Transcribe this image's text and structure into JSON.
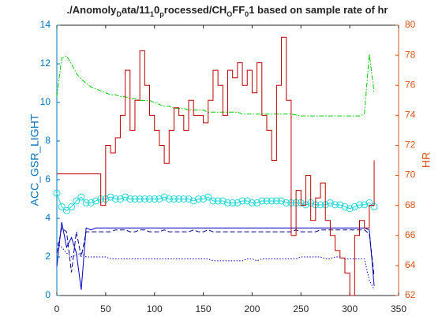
{
  "chart_data": {
    "type": "line",
    "title": [
      "./Anomoly",
      "D",
      "ata/11",
      "1",
      "0",
      "p",
      "rocessed/CH",
      "O",
      "FF",
      "0",
      "1 based on sample rate of hr"
    ],
    "ylabel": "ACC_GSR_LIGHT",
    "y2label": "HR",
    "xlim": [
      0,
      350
    ],
    "xticks": [
      0,
      50,
      100,
      150,
      200,
      250,
      300,
      350
    ],
    "ylim": [
      0,
      14
    ],
    "yticks": [
      0,
      2,
      4,
      6,
      8,
      10,
      12,
      14
    ],
    "y2lim": [
      62,
      80
    ],
    "y2ticks": [
      62,
      64,
      66,
      68,
      70,
      72,
      74,
      76,
      78,
      80
    ],
    "axis_color": "#0072bd",
    "axis2_color": "#d95319",
    "x": [
      0,
      5,
      10,
      15,
      20,
      25,
      30,
      35,
      40,
      45,
      50,
      55,
      60,
      65,
      70,
      75,
      80,
      85,
      90,
      95,
      100,
      105,
      110,
      115,
      120,
      125,
      130,
      135,
      140,
      145,
      150,
      155,
      160,
      165,
      170,
      175,
      180,
      185,
      190,
      195,
      200,
      205,
      210,
      215,
      220,
      225,
      230,
      235,
      240,
      245,
      250,
      255,
      260,
      265,
      270,
      275,
      280,
      285,
      290,
      295,
      300,
      305,
      310,
      315,
      320,
      325
    ],
    "series": [
      {
        "color": "#00cc00",
        "linestyle": "-.",
        "values": [
          10.3,
          12.3,
          12.4,
          12,
          11.5,
          11.2,
          11,
          10.8,
          10.7,
          10.6,
          10.5,
          10.4,
          10.4,
          10.3,
          10.3,
          10.2,
          10.2,
          10.1,
          10.1,
          10.1,
          10,
          9.9,
          9.8,
          9.8,
          9.7,
          9.7,
          9.7,
          9.6,
          9.6,
          9.6,
          9.6,
          9.5,
          9.5,
          9.5,
          9.5,
          9.5,
          9.5,
          9.5,
          9.4,
          9.4,
          9.4,
          9.4,
          9.4,
          9.4,
          9.4,
          9.4,
          9.4,
          9.4,
          9.4,
          9.35,
          9.3,
          9.3,
          9.3,
          9.3,
          9.3,
          9.3,
          9.3,
          9.3,
          9.3,
          9.3,
          9.3,
          9.3,
          9.3,
          9.4,
          12.5,
          10.5
        ]
      },
      {
        "color": "#22d8d8",
        "linestyle": "-",
        "marker": "o",
        "values": [
          5.3,
          4.6,
          4.4,
          4.6,
          4.9,
          5.1,
          4.8,
          4.8,
          4.9,
          5,
          5,
          5.1,
          5,
          5,
          5.1,
          5,
          5,
          5,
          5,
          5,
          5,
          5,
          5.1,
          5,
          5,
          5,
          5,
          5,
          4.9,
          5,
          5,
          5.1,
          4.9,
          4.9,
          4.9,
          4.8,
          4.8,
          4.8,
          4.9,
          4.9,
          4.8,
          4.8,
          4.9,
          4.9,
          4.9,
          4.9,
          4.9,
          4.8,
          4.8,
          4.8,
          4.8,
          4.7,
          4.8,
          4.7,
          4.7,
          4.7,
          4.8,
          4.7,
          4.7,
          4.6,
          4.5,
          4.6,
          4.7,
          4.7,
          4.8,
          4.6
        ]
      },
      {
        "color": "#0000cc",
        "linestyle": "-",
        "values": [
          1.5,
          3.8,
          2.5,
          3,
          2.2,
          0.3,
          3.5,
          3.4,
          3.5,
          3.5,
          3.5,
          3.5,
          3.5,
          3.5,
          3.5,
          3.5,
          3.5,
          3.5,
          3.5,
          3.5,
          3.5,
          3.5,
          3.5,
          3.5,
          3.5,
          3.5,
          3.5,
          3.5,
          3.5,
          3.5,
          3.5,
          3.5,
          3.5,
          3.5,
          3.5,
          3.5,
          3.5,
          3.5,
          3.5,
          3.5,
          3.5,
          3.5,
          3.5,
          3.5,
          3.5,
          3.5,
          3.5,
          3.5,
          3.5,
          3.5,
          3.5,
          3.5,
          3.5,
          3.5,
          3.5,
          3.5,
          3.5,
          3.5,
          3.5,
          3.5,
          3.5,
          3.5,
          3.5,
          3.5,
          3.4,
          0.5
        ]
      },
      {
        "color": "#00008b",
        "linestyle": "--",
        "values": [
          2.2,
          3.5,
          3.3,
          1.2,
          3.3,
          2,
          3.3,
          3.3,
          3.3,
          3.3,
          3.3,
          3.3,
          3.4,
          3.4,
          3.4,
          3.3,
          3.3,
          3.4,
          3.4,
          3.3,
          3.3,
          3.3,
          3.4,
          3.3,
          3.3,
          3.3,
          3.3,
          3.3,
          3.4,
          3.3,
          3.3,
          3.4,
          3.3,
          3.3,
          3.3,
          3.3,
          3.3,
          3.3,
          3.3,
          3.3,
          3.3,
          3.3,
          3.3,
          3.3,
          3.3,
          3.3,
          3.3,
          3.3,
          3.3,
          3.4,
          3.3,
          3.3,
          3.3,
          3.3,
          3.4,
          3.4,
          3.4,
          3.4,
          3.4,
          3.4,
          3.4,
          3.4,
          3.4,
          3.4,
          3.2,
          1
        ]
      },
      {
        "color": "#0000cc",
        "linestyle": ":",
        "values": [
          2.7,
          2.5,
          2.2,
          2,
          2.1,
          2.2,
          2,
          2,
          2,
          2,
          2,
          1.9,
          1.9,
          1.9,
          1.9,
          1.9,
          1.9,
          1.9,
          1.9,
          1.9,
          1.9,
          1.9,
          1.9,
          1.9,
          1.9,
          1.9,
          1.9,
          1.9,
          1.9,
          1.9,
          1.9,
          1.9,
          1.8,
          1.8,
          1.8,
          1.8,
          1.8,
          1.8,
          1.8,
          1.9,
          1.9,
          1.8,
          1.9,
          1.9,
          1.9,
          1.9,
          1.9,
          1.9,
          1.9,
          1.9,
          2,
          2,
          2,
          2,
          2,
          1.9,
          1.9,
          2,
          2,
          1.9,
          1.9,
          1.9,
          1.9,
          1.9,
          0.8,
          0.3
        ]
      },
      {
        "color": "#c00000",
        "linestyle": "-",
        "step": true,
        "axis": "y2",
        "values": [
          70.1,
          70.1,
          70.1,
          70.1,
          70.1,
          70.1,
          70.1,
          70.1,
          70.1,
          68,
          72,
          71.5,
          72.5,
          74,
          77,
          73,
          75,
          78.3,
          76,
          74,
          73,
          72,
          70.8,
          73,
          74.5,
          74,
          73,
          75,
          74,
          74,
          73.5,
          75,
          77,
          76,
          74,
          77,
          76.5,
          77.5,
          76,
          77,
          75.5,
          77.5,
          74,
          73,
          71,
          76,
          79.2,
          75,
          66,
          69,
          68,
          70,
          67,
          68.5,
          69.5,
          67,
          66,
          65,
          64.5,
          63.5,
          62,
          66,
          67,
          66.5,
          68,
          71
        ]
      }
    ]
  }
}
